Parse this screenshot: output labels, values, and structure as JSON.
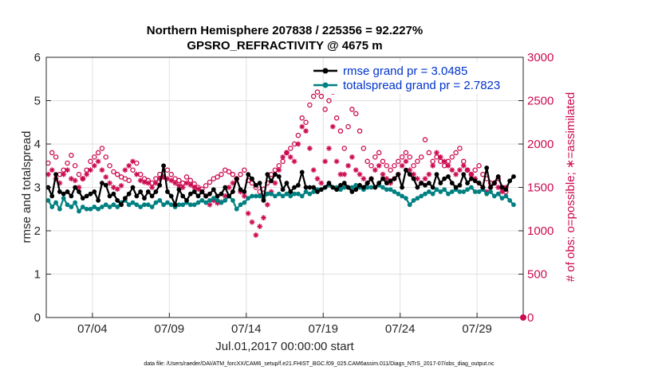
{
  "chart_data": {
    "type": "line",
    "title_line1": "Northern Hemisphere 207838 / 225356 = 92.227%",
    "title_line2": "GPSRO_REFRACTIVITY @ 4675 m",
    "ylabel_left": "rmse and totalspread",
    "ylabel_right": "# of obs: o=possible; ∗=assimilated",
    "xlabel": "Jul.01,2017 00:00:00 start",
    "footnote": "data file: /Users/raeder/DAI/ATM_forcXX/CAM6_setup/f.e21.FHIST_BGC.f09_025.CAM6assim.011/Diags_NTrS_2017-07/obs_diag_output.nc",
    "ylim_left": [
      0,
      6
    ],
    "ylim_right": [
      0,
      3000
    ],
    "xlim_days": [
      1,
      32
    ],
    "left_ticks": [
      "0",
      "1",
      "2",
      "3",
      "4",
      "5",
      "6"
    ],
    "right_ticks": [
      "0",
      "500",
      "1000",
      "1500",
      "2000",
      "2500",
      "3000"
    ],
    "x_ticks": [
      {
        "day": 4,
        "label": "07/04"
      },
      {
        "day": 9,
        "label": "07/09"
      },
      {
        "day": 14,
        "label": "07/14"
      },
      {
        "day": 19,
        "label": "07/19"
      },
      {
        "day": 24,
        "label": "07/24"
      },
      {
        "day": 29,
        "label": "07/29"
      }
    ],
    "legend": [
      "rmse grand pr = 3.0485",
      "totalspread grand pr = 2.7823"
    ],
    "colors": {
      "rmse": "#000000",
      "spread": "#008080",
      "obs": "#cc0a50",
      "grid": "#e0e0e0",
      "axis": "#262626"
    },
    "x_days": [
      1.125,
      1.375,
      1.625,
      1.875,
      2.125,
      2.375,
      2.625,
      2.875,
      3.125,
      3.375,
      3.625,
      3.875,
      4.125,
      4.375,
      4.625,
      4.875,
      5.125,
      5.375,
      5.625,
      5.875,
      6.125,
      6.375,
      6.625,
      6.875,
      7.125,
      7.375,
      7.625,
      7.875,
      8.125,
      8.375,
      8.625,
      8.875,
      9.125,
      9.375,
      9.625,
      9.875,
      10.125,
      10.375,
      10.625,
      10.875,
      11.125,
      11.375,
      11.625,
      11.875,
      12.125,
      12.375,
      12.625,
      12.875,
      13.125,
      13.375,
      13.625,
      13.875,
      14.125,
      14.375,
      14.625,
      14.875,
      15.125,
      15.375,
      15.625,
      15.875,
      16.125,
      16.375,
      16.625,
      16.875,
      17.125,
      17.375,
      17.625,
      17.875,
      18.125,
      18.375,
      18.625,
      18.875,
      19.125,
      19.375,
      19.625,
      19.875,
      20.125,
      20.375,
      20.625,
      20.875,
      21.125,
      21.375,
      21.625,
      21.875,
      22.125,
      22.375,
      22.625,
      22.875,
      23.125,
      23.375,
      23.625,
      23.875,
      24.125,
      24.375,
      24.625,
      24.875,
      25.125,
      25.375,
      25.625,
      25.875,
      26.125,
      26.375,
      26.625,
      26.875,
      27.125,
      27.375,
      27.625,
      27.875,
      28.125,
      28.375,
      28.625,
      28.875,
      29.125,
      29.375,
      29.625,
      29.875,
      30.125,
      30.375,
      30.625,
      30.875,
      31.125,
      31.375,
      31.625,
      31.875
    ],
    "series": [
      {
        "name": "rmse",
        "values": [
          3.0,
          2.8,
          3.3,
          2.9,
          2.85,
          2.9,
          2.8,
          3.0,
          2.9,
          2.75,
          2.8,
          2.85,
          2.9,
          2.7,
          3.1,
          3.05,
          2.8,
          2.85,
          2.7,
          2.6,
          2.75,
          2.85,
          3.0,
          2.8,
          2.9,
          2.75,
          2.9,
          2.8,
          2.9,
          3.05,
          3.5,
          2.9,
          2.8,
          2.6,
          2.95,
          2.8,
          2.7,
          2.85,
          2.9,
          2.8,
          2.9,
          2.8,
          2.85,
          2.95,
          2.8,
          2.85,
          3.0,
          2.8,
          2.9,
          3.2,
          2.95,
          2.9,
          3.3,
          3.2,
          3.05,
          3.1,
          2.7,
          3.3,
          3.15,
          3.3,
          3.25,
          2.95,
          3.1,
          2.9,
          3.0,
          3.05,
          3.35,
          3.0,
          3.0,
          3.0,
          2.9,
          2.95,
          3.0,
          3.1,
          3.0,
          2.95,
          3.05,
          3.1,
          3.0,
          2.9,
          2.95,
          3.05,
          3.0,
          3.1,
          3.2,
          3.0,
          3.1,
          3.2,
          3.1,
          3.15,
          3.2,
          3.3,
          3.0,
          3.4,
          3.3,
          3.2,
          3.0,
          3.1,
          3.05,
          3.1,
          3.0,
          3.3,
          3.1,
          3.2,
          3.25,
          3.1,
          3.0,
          3.05,
          3.3,
          3.1,
          3.2,
          3.15,
          3.1,
          3.0,
          3.45,
          3.0,
          3.1,
          3.25,
          3.0,
          2.95,
          3.15,
          3.25
        ]
      },
      {
        "name": "totalspread",
        "values": [
          2.7,
          2.55,
          2.65,
          2.5,
          2.75,
          2.6,
          2.55,
          2.65,
          2.45,
          2.55,
          2.5,
          2.5,
          2.55,
          2.5,
          2.55,
          2.6,
          2.55,
          2.6,
          2.55,
          2.65,
          2.7,
          2.6,
          2.65,
          2.6,
          2.55,
          2.6,
          2.6,
          2.55,
          2.65,
          2.7,
          2.6,
          2.65,
          2.6,
          2.55,
          2.6,
          2.6,
          2.65,
          2.6,
          2.6,
          2.65,
          2.7,
          2.65,
          2.7,
          2.75,
          2.7,
          2.65,
          2.7,
          2.8,
          2.7,
          2.5,
          2.6,
          2.65,
          2.75,
          2.8,
          2.8,
          2.8,
          2.75,
          2.85,
          2.85,
          2.8,
          2.85,
          2.8,
          2.85,
          2.8,
          2.85,
          2.85,
          2.8,
          2.9,
          2.85,
          2.9,
          2.95,
          2.95,
          3.0,
          3.05,
          3.0,
          3.0,
          2.95,
          3.0,
          3.0,
          3.0,
          3.05,
          3.0,
          2.95,
          3.0,
          3.0,
          3.0,
          3.05,
          3.0,
          2.95,
          2.95,
          2.9,
          2.85,
          2.8,
          2.75,
          2.6,
          2.7,
          2.75,
          2.8,
          2.85,
          2.9,
          2.85,
          2.95,
          2.9,
          2.95,
          2.85,
          2.9,
          2.95,
          2.9,
          2.9,
          2.95,
          3.0,
          2.9,
          2.9,
          2.95,
          2.85,
          2.9,
          2.8,
          2.85,
          2.75,
          2.8,
          2.7,
          2.6
        ]
      },
      {
        "name": "obs_possible",
        "values": [
          1780,
          1900,
          1850,
          1650,
          1700,
          1780,
          1870,
          1750,
          1650,
          1600,
          1700,
          1800,
          1850,
          1900,
          1950,
          1850,
          1750,
          1680,
          1650,
          1620,
          1600,
          1580,
          1700,
          1780,
          1650,
          1600,
          1580,
          1550,
          1600,
          1650,
          1620,
          1700,
          1650,
          1600,
          1580,
          1550,
          1620,
          1580,
          1540,
          1500,
          1480,
          1520,
          1560,
          1600,
          1620,
          1650,
          1700,
          1680,
          1650,
          1600,
          1650,
          1700,
          1580,
          1550,
          1500,
          1450,
          1480,
          1550,
          1650,
          1700,
          1750,
          1800,
          1900,
          1950,
          2000,
          2100,
          2300,
          2250,
          2450,
          2550,
          2600,
          2550,
          2400,
          2500,
          2600,
          2300,
          2150,
          1950,
          2200,
          2400,
          2350,
          2150,
          1950,
          1800,
          1750,
          1850,
          1900,
          1800,
          1750,
          1700,
          1750,
          1800,
          1850,
          1900,
          1850,
          1750,
          1800,
          1850,
          2050,
          1900,
          1800,
          1850,
          1800,
          1750,
          1800,
          1850,
          1900,
          1950,
          1800,
          1700,
          1650,
          1700,
          1750,
          1650,
          1600,
          1550,
          1550,
          1600,
          1500,
          1450
        ]
      },
      {
        "name": "obs_assimilated",
        "values": [
          1650,
          1700,
          1600,
          1550,
          1650,
          1700,
          1600,
          1580,
          1500,
          1600,
          1650,
          1700,
          1750,
          1800,
          1700,
          1620,
          1550,
          1500,
          1480,
          1520,
          1700,
          1750,
          1800,
          1650,
          1580,
          1560,
          1550,
          1500,
          1550,
          1600,
          1620,
          1600,
          1580,
          1550,
          1520,
          1500,
          1550,
          1530,
          1500,
          1480,
          1450,
          1400,
          1300,
          1350,
          1320,
          1330,
          1400,
          1500,
          1550,
          1600,
          1450,
          1400,
          1200,
          1100,
          950,
          1050,
          1150,
          1300,
          1450,
          1550,
          1700,
          1850,
          1900,
          1850,
          1800,
          2000,
          2200,
          2150,
          1950,
          1700,
          1600,
          1550,
          1800,
          1950,
          2200,
          1800,
          1650,
          1650,
          1750,
          1850,
          1700,
          1650,
          1600,
          1550,
          1600,
          1700,
          1750,
          1650,
          1600,
          1550,
          1600,
          1650,
          1750,
          1800,
          1700,
          1650,
          1600,
          1550,
          1600,
          1650,
          1750,
          1900,
          1850,
          1800,
          1750,
          1700,
          1650,
          1700,
          1750,
          1700,
          1650,
          1600,
          1550,
          1500,
          1450,
          1500,
          1550,
          1500,
          1450,
          1500
        ]
      }
    ]
  }
}
